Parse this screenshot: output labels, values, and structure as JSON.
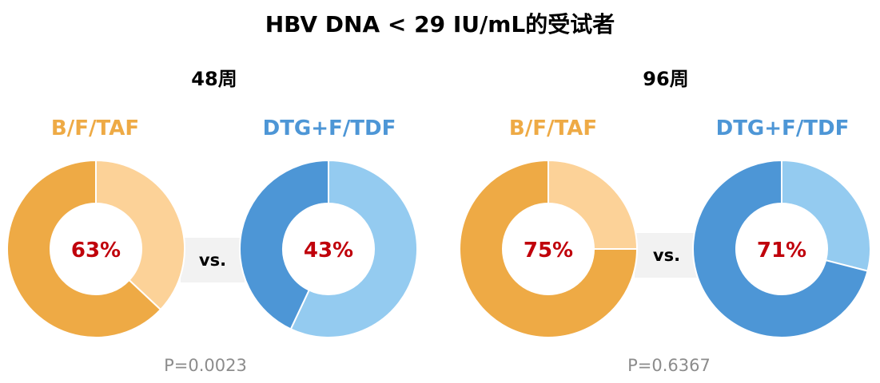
{
  "chart_data": {
    "type": "pie",
    "title": "HBV DNA < 29 IU/mL的受试者",
    "panels": [
      {
        "week": "48周",
        "vs_label": "vs.",
        "p_value": "P=0.0023",
        "groups": [
          {
            "name": "B/F/TAF",
            "value": 63,
            "label": "63%",
            "color": "#eeaa45",
            "rest_color": "#fcd298"
          },
          {
            "name": "DTG+F/TDF",
            "value": 43,
            "label": "43%",
            "color": "#4d96d6",
            "rest_color": "#94cbf0"
          }
        ]
      },
      {
        "week": "96周",
        "vs_label": "vs.",
        "p_value": "P=0.6367",
        "groups": [
          {
            "name": "B/F/TAF",
            "value": 75,
            "label": "75%",
            "color": "#eeaa45",
            "rest_color": "#fcd298"
          },
          {
            "name": "DTG+F/TDF",
            "value": 71,
            "label": "71%",
            "color": "#4d96d6",
            "rest_color": "#94cbf0"
          }
        ]
      }
    ],
    "label_colors": {
      "B/F/TAF": "#eeaa45",
      "DTG+F/TDF": "#4d96d6",
      "percent": "#c0000b"
    }
  }
}
